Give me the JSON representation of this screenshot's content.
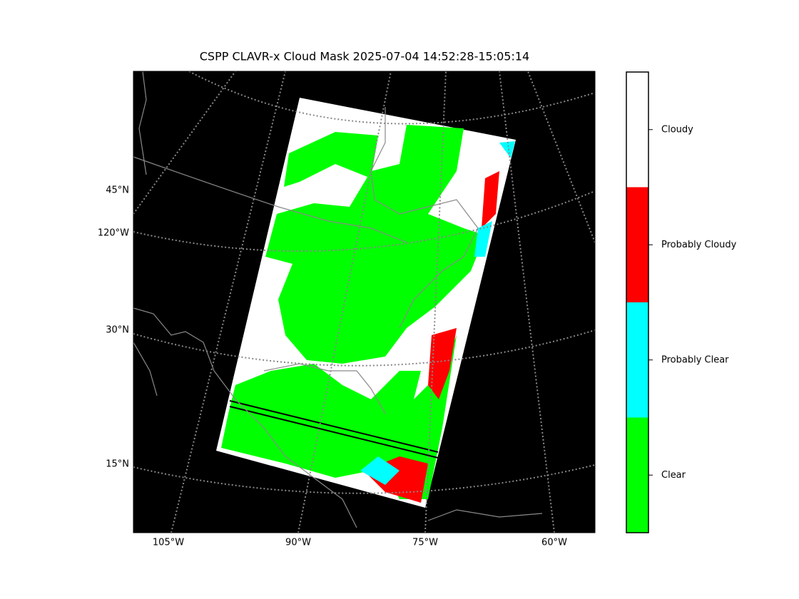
{
  "title": "CSPP CLAVR-x Cloud Mask 2025-07-04 14:52:28-15:05:14",
  "map": {
    "lat_labels": [
      "45°N",
      "120°W",
      "30°N",
      "15°N"
    ],
    "lon_labels": [
      "105°W",
      "90°W",
      "75°W",
      "60°W"
    ]
  },
  "colorbar": {
    "classes": [
      {
        "label": "Clear",
        "color": "#00ff00"
      },
      {
        "label": "Probably Clear",
        "color": "#00ffff"
      },
      {
        "label": "Probably Cloudy",
        "color": "#ff0000"
      },
      {
        "label": "Cloudy",
        "color": "#ffffff"
      }
    ]
  }
}
